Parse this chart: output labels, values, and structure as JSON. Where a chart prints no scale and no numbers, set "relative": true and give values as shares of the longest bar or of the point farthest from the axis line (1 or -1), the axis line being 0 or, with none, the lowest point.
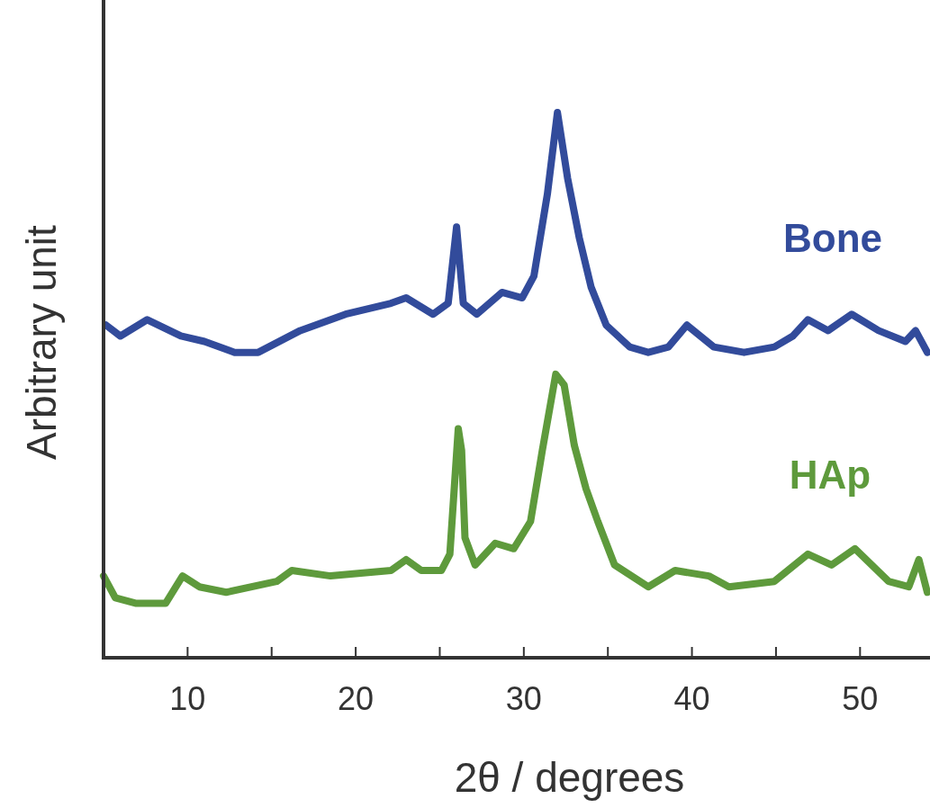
{
  "chart_data": {
    "type": "line",
    "xlabel": "2θ / degrees",
    "ylabel": "Arbitrary unit",
    "relative": true,
    "xlim": [
      5,
      54
    ],
    "xticks": [
      10,
      {
        "value": 15,
        "label": null
      },
      20,
      {
        "value": 25,
        "label": null
      },
      30,
      {
        "value": 35,
        "label": null
      },
      40,
      {
        "value": 45,
        "label": null
      },
      50
    ],
    "grid": false,
    "marker": "none",
    "line_style": "solid",
    "series": [
      {
        "name": "Bone",
        "color": "#324b9b",
        "x": [
          5.15,
          6.0,
          7.6,
          9.6,
          11.0,
          12.8,
          14.2,
          16.7,
          19.4,
          22.1,
          23.0,
          24.6,
          25.5,
          26.0,
          26.4,
          27.2,
          28.7,
          29.9,
          30.6,
          31.4,
          32.0,
          32.6,
          33.3,
          34.0,
          34.9,
          36.3,
          37.4,
          38.6,
          39.7,
          41.3,
          43.1,
          44.9,
          46.0,
          46.9,
          48.1,
          49.5,
          51.1,
          52.7,
          53.3,
          54.0
        ],
        "values": [
          0.61,
          0.59,
          0.62,
          0.59,
          0.58,
          0.56,
          0.56,
          0.6,
          0.63,
          0.65,
          0.66,
          0.63,
          0.65,
          0.79,
          0.65,
          0.63,
          0.67,
          0.66,
          0.7,
          0.85,
          1.0,
          0.88,
          0.77,
          0.68,
          0.61,
          0.57,
          0.56,
          0.57,
          0.61,
          0.57,
          0.56,
          0.57,
          0.59,
          0.62,
          0.6,
          0.63,
          0.6,
          0.58,
          0.6,
          0.56
        ]
      },
      {
        "name": "HAp",
        "color": "#5e9a3c",
        "x": [
          5.0,
          5.7,
          6.9,
          8.7,
          9.7,
          10.7,
          12.3,
          15.3,
          16.2,
          18.5,
          22.1,
          23.0,
          23.9,
          25.1,
          25.6,
          26.1,
          26.3,
          26.5,
          27.1,
          28.3,
          29.4,
          30.4,
          31.1,
          31.9,
          32.4,
          33.0,
          33.7,
          34.4,
          35.4,
          37.4,
          39.0,
          41.0,
          42.2,
          44.9,
          46.9,
          48.3,
          49.7,
          51.7,
          52.9,
          53.5,
          54.0
        ],
        "values": [
          0.15,
          0.11,
          0.1,
          0.1,
          0.15,
          0.13,
          0.12,
          0.14,
          0.16,
          0.15,
          0.16,
          0.18,
          0.16,
          0.16,
          0.19,
          0.42,
          0.38,
          0.22,
          0.17,
          0.21,
          0.2,
          0.25,
          0.38,
          0.52,
          0.5,
          0.39,
          0.31,
          0.25,
          0.17,
          0.13,
          0.16,
          0.15,
          0.13,
          0.14,
          0.19,
          0.17,
          0.2,
          0.14,
          0.13,
          0.18,
          0.12
        ]
      }
    ]
  }
}
